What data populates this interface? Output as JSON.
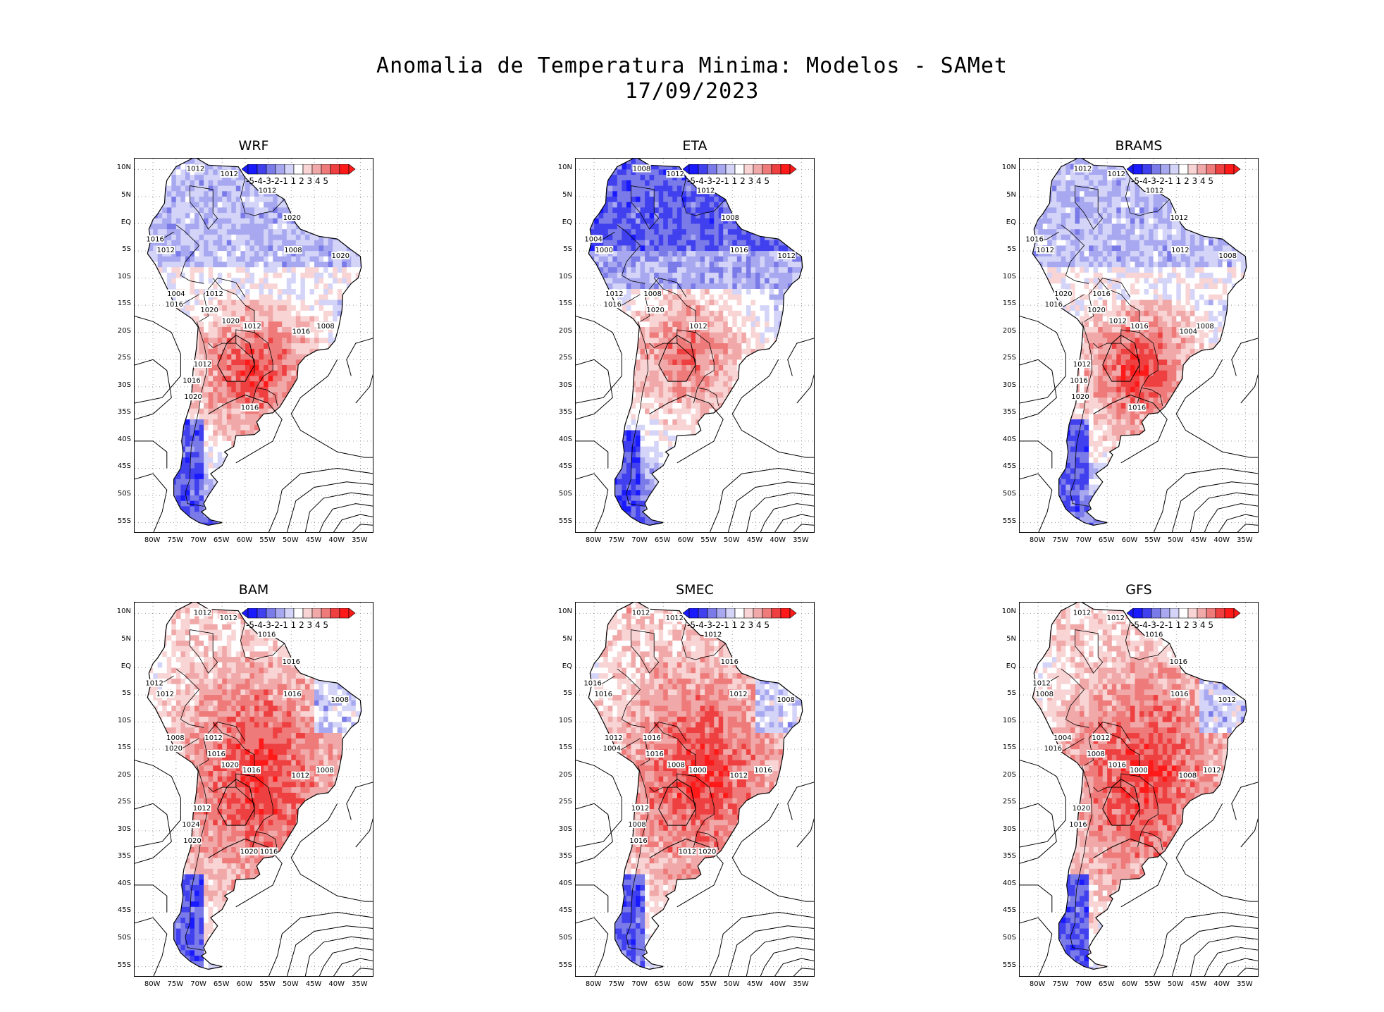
{
  "title": {
    "line1": "Anomalia de Temperatura Minima: Modelos - SAMet",
    "line2": "17/09/2023"
  },
  "axes": {
    "lat_labels": [
      "10N",
      "5N",
      "EQ",
      "5S",
      "10S",
      "15S",
      "20S",
      "25S",
      "30S",
      "35S",
      "40S",
      "45S",
      "50S",
      "55S"
    ],
    "lon_labels": [
      "80W",
      "75W",
      "70W",
      "65W",
      "60W",
      "55W",
      "50W",
      "45W",
      "40W",
      "35W"
    ]
  },
  "colorbar": {
    "label_text": "-5-4-3-2-1 1 2 3 4 5",
    "colors": [
      "#1a1aff",
      "#4040ee",
      "#7a7ae8",
      "#a8a8f0",
      "#d4d4f8",
      "#ffffff",
      "#f8d4d4",
      "#f0a8a8",
      "#ee7a7a",
      "#ee4040",
      "#ff1a1a"
    ]
  },
  "panels": [
    {
      "name": "WRF",
      "anomaly": "mixed",
      "isobars": [
        "1012",
        "1012",
        "1012",
        "1020",
        "1016",
        "1012",
        "1008",
        "1020",
        "1004",
        "1012",
        "1016",
        "1020",
        "1012",
        "1020",
        "1016",
        "1008",
        "1012",
        "1016",
        "1020",
        "1016"
      ]
    },
    {
      "name": "ETA",
      "anomaly": "cold-north",
      "isobars": [
        "1008",
        "1012",
        "1012",
        "1008",
        "1004",
        "1000",
        "1016",
        "1012",
        "1012",
        "1008",
        "1016",
        "1020",
        "1012"
      ]
    },
    {
      "name": "BRAMS",
      "anomaly": "mixed",
      "isobars": [
        "1012",
        "1012",
        "1012",
        "1012",
        "1016",
        "1012",
        "1012",
        "1008",
        "1020",
        "1016",
        "1016",
        "1020",
        "1016",
        "1012",
        "1004",
        "1008",
        "1012",
        "1016",
        "1020",
        "1016"
      ]
    },
    {
      "name": "BAM",
      "anomaly": "warm",
      "isobars": [
        "1012",
        "1012",
        "1016",
        "1016",
        "1012",
        "1012",
        "1016",
        "1008",
        "1008",
        "1012",
        "1020",
        "1016",
        "1016",
        "1020",
        "1012",
        "1008",
        "1012",
        "1024",
        "1020",
        "1020",
        "1016"
      ]
    },
    {
      "name": "SMEC",
      "anomaly": "warm",
      "isobars": [
        "1012",
        "1012",
        "1012",
        "1016",
        "1016",
        "1016",
        "1012",
        "1008",
        "1012",
        "1016",
        "1004",
        "1016",
        "1000",
        "1008",
        "1012",
        "1016",
        "1012",
        "1008",
        "1016",
        "1012",
        "1020"
      ]
    },
    {
      "name": "GFS",
      "anomaly": "warm",
      "isobars": [
        "1012",
        "1012",
        "1016",
        "1016",
        "1012",
        "1008",
        "1016",
        "1012",
        "1004",
        "1012",
        "1016",
        "1008",
        "1000",
        "1016",
        "1008",
        "1012",
        "1020",
        "1016"
      ]
    }
  ]
}
